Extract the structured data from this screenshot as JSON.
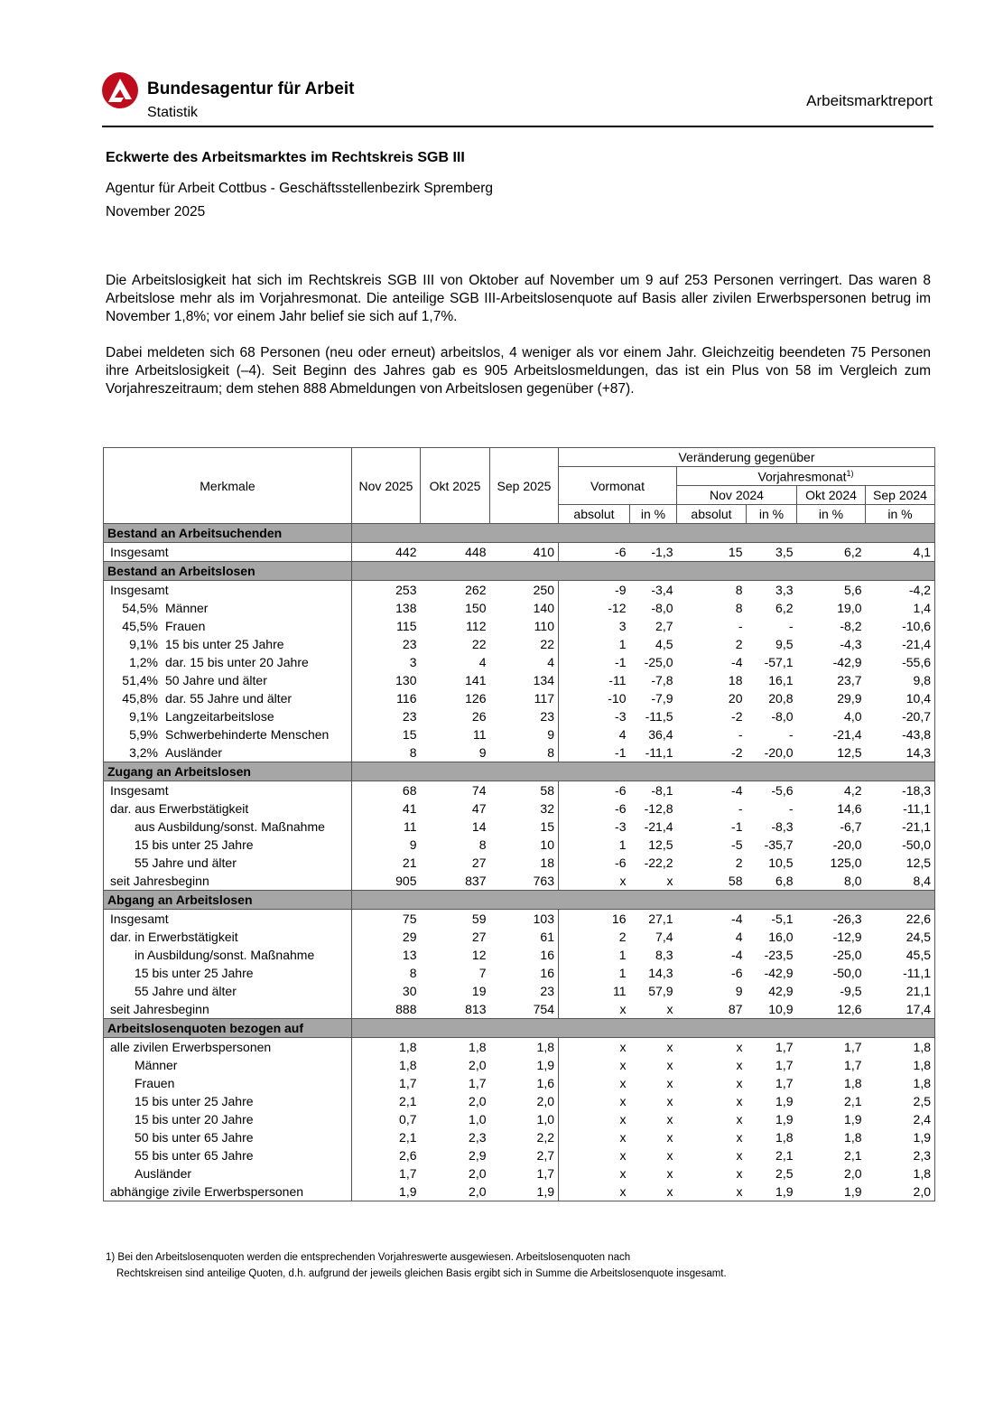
{
  "header": {
    "org": "Bundesagentur für Arbeit",
    "sub": "Statistik",
    "report": "Arbeitsmarktreport",
    "logo_color": "#c00d1e"
  },
  "title": "Eckwerte des Arbeitsmarktes im Rechtskreis SGB III",
  "agency": "Agentur für Arbeit Cottbus - Geschäftsstellenbezirk Spremberg",
  "month": "November 2025",
  "paragraphs": [
    "Die Arbeitslosigkeit hat sich im Rechtskreis SGB III von Oktober auf November um 9 auf 253 Personen verringert. Das waren 8 Arbeitslose mehr als im Vorjahresmonat. Die anteilige SGB III-Arbeitslosenquote auf Basis aller zivilen Erwerbspersonen betrug im November 1,8%; vor einem Jahr belief sie sich auf 1,7%.",
    "Dabei meldeten sich 68 Personen (neu oder erneut) arbeitslos, 4 weniger als vor einem Jahr. Gleichzeitig beendeten 75 Personen ihre Arbeitslosigkeit (–4). Seit Beginn des Jahres gab es 905 Arbeitslosmeldungen, das ist ein Plus von 58 im Vergleich zum Vorjahreszeitraum; dem stehen 888 Abmeldungen von Arbeitslosen gegenüber (+87)."
  ],
  "table": {
    "head": {
      "merkmale": "Merkmale",
      "nov25": "Nov 2025",
      "okt25": "Okt 2025",
      "sep25": "Sep 2025",
      "change": "Veränderung gegenüber",
      "vormonat": "Vormonat",
      "vorjahr": "Vorjahresmonat",
      "vorjahr_note": "1)",
      "nov24": "Nov 2024",
      "okt24": "Okt 2024",
      "sep24": "Sep 2024",
      "absolut": "absolut",
      "inpct": "in %"
    },
    "rows": [
      {
        "section": "Bestand an Arbeitsuchenden"
      },
      {
        "label": "Insgesamt",
        "indent": 0,
        "v": [
          "442",
          "448",
          "410",
          "-6",
          "-1,3",
          "15",
          "3,5",
          "6,2",
          "4,1"
        ]
      },
      {
        "section": "Bestand an Arbeitslosen"
      },
      {
        "label": "Insgesamt",
        "indent": 0,
        "v": [
          "253",
          "262",
          "250",
          "-9",
          "-3,4",
          "8",
          "3,3",
          "5,6",
          "-4,2"
        ]
      },
      {
        "share": "54,5%",
        "label": "Männer",
        "v": [
          "138",
          "150",
          "140",
          "-12",
          "-8,0",
          "8",
          "6,2",
          "19,0",
          "1,4"
        ]
      },
      {
        "share": "45,5%",
        "label": "Frauen",
        "v": [
          "115",
          "112",
          "110",
          "3",
          "2,7",
          "-",
          "-",
          "-8,2",
          "-10,6"
        ]
      },
      {
        "share": "9,1%",
        "label": "15 bis unter 25 Jahre",
        "v": [
          "23",
          "22",
          "22",
          "1",
          "4,5",
          "2",
          "9,5",
          "-4,3",
          "-21,4"
        ]
      },
      {
        "share": "1,2%",
        "label": "dar. 15 bis unter 20 Jahre",
        "v": [
          "3",
          "4",
          "4",
          "-1",
          "-25,0",
          "-4",
          "-57,1",
          "-42,9",
          "-55,6"
        ]
      },
      {
        "share": "51,4%",
        "label": "50 Jahre und älter",
        "v": [
          "130",
          "141",
          "134",
          "-11",
          "-7,8",
          "18",
          "16,1",
          "23,7",
          "9,8"
        ]
      },
      {
        "share": "45,8%",
        "label": "dar. 55 Jahre und älter",
        "v": [
          "116",
          "126",
          "117",
          "-10",
          "-7,9",
          "20",
          "20,8",
          "29,9",
          "10,4"
        ]
      },
      {
        "share": "9,1%",
        "label": "Langzeitarbeitslose",
        "v": [
          "23",
          "26",
          "23",
          "-3",
          "-11,5",
          "-2",
          "-8,0",
          "4,0",
          "-20,7"
        ]
      },
      {
        "share": "5,9%",
        "label": "Schwerbehinderte Menschen",
        "v": [
          "15",
          "11",
          "9",
          "4",
          "36,4",
          "-",
          "-",
          "-21,4",
          "-43,8"
        ]
      },
      {
        "share": "3,2%",
        "label": "Ausländer",
        "v": [
          "8",
          "9",
          "8",
          "-1",
          "-11,1",
          "-2",
          "-20,0",
          "12,5",
          "14,3"
        ]
      },
      {
        "section": "Zugang an Arbeitslosen"
      },
      {
        "label": "Insgesamt",
        "indent": 0,
        "v": [
          "68",
          "74",
          "58",
          "-6",
          "-8,1",
          "-4",
          "-5,6",
          "4,2",
          "-18,3"
        ]
      },
      {
        "label": "dar. aus Erwerbstätigkeit",
        "indent": 0,
        "v": [
          "41",
          "47",
          "32",
          "-6",
          "-12,8",
          "-",
          "-",
          "14,6",
          "-11,1"
        ]
      },
      {
        "label": "aus Ausbildung/sonst. Maßnahme",
        "indent": 1,
        "v": [
          "11",
          "14",
          "15",
          "-3",
          "-21,4",
          "-1",
          "-8,3",
          "-6,7",
          "-21,1"
        ]
      },
      {
        "label": "15 bis unter 25 Jahre",
        "indent": 1,
        "v": [
          "9",
          "8",
          "10",
          "1",
          "12,5",
          "-5",
          "-35,7",
          "-20,0",
          "-50,0"
        ]
      },
      {
        "label": "55 Jahre und älter",
        "indent": 1,
        "v": [
          "21",
          "27",
          "18",
          "-6",
          "-22,2",
          "2",
          "10,5",
          "125,0",
          "12,5"
        ]
      },
      {
        "label": "seit Jahresbeginn",
        "indent": 0,
        "v": [
          "905",
          "837",
          "763",
          "x",
          "x",
          "58",
          "6,8",
          "8,0",
          "8,4"
        ]
      },
      {
        "section": "Abgang an Arbeitslosen"
      },
      {
        "label": "Insgesamt",
        "indent": 0,
        "v": [
          "75",
          "59",
          "103",
          "16",
          "27,1",
          "-4",
          "-5,1",
          "-26,3",
          "22,6"
        ]
      },
      {
        "label": "dar. in Erwerbstätigkeit",
        "indent": 0,
        "v": [
          "29",
          "27",
          "61",
          "2",
          "7,4",
          "4",
          "16,0",
          "-12,9",
          "24,5"
        ]
      },
      {
        "label": "in Ausbildung/sonst. Maßnahme",
        "indent": 1,
        "v": [
          "13",
          "12",
          "16",
          "1",
          "8,3",
          "-4",
          "-23,5",
          "-25,0",
          "45,5"
        ]
      },
      {
        "label": "15 bis unter 25 Jahre",
        "indent": 1,
        "v": [
          "8",
          "7",
          "16",
          "1",
          "14,3",
          "-6",
          "-42,9",
          "-50,0",
          "-11,1"
        ]
      },
      {
        "label": "55 Jahre und älter",
        "indent": 1,
        "v": [
          "30",
          "19",
          "23",
          "11",
          "57,9",
          "9",
          "42,9",
          "-9,5",
          "21,1"
        ]
      },
      {
        "label": "seit Jahresbeginn",
        "indent": 0,
        "v": [
          "888",
          "813",
          "754",
          "x",
          "x",
          "87",
          "10,9",
          "12,6",
          "17,4"
        ]
      },
      {
        "section": "Arbeitslosenquoten bezogen auf"
      },
      {
        "label": "alle zivilen Erwerbspersonen",
        "indent": 0,
        "v": [
          "1,8",
          "1,8",
          "1,8",
          "x",
          "x",
          "x",
          "1,7",
          "1,7",
          "1,8"
        ]
      },
      {
        "label": "Männer",
        "indent": 1,
        "v": [
          "1,8",
          "2,0",
          "1,9",
          "x",
          "x",
          "x",
          "1,7",
          "1,7",
          "1,8"
        ]
      },
      {
        "label": "Frauen",
        "indent": 1,
        "v": [
          "1,7",
          "1,7",
          "1,6",
          "x",
          "x",
          "x",
          "1,7",
          "1,8",
          "1,8"
        ]
      },
      {
        "label": "15 bis unter 25 Jahre",
        "indent": 1,
        "v": [
          "2,1",
          "2,0",
          "2,0",
          "x",
          "x",
          "x",
          "1,9",
          "2,1",
          "2,5"
        ]
      },
      {
        "label": "15 bis unter 20 Jahre",
        "indent": 1,
        "v": [
          "0,7",
          "1,0",
          "1,0",
          "x",
          "x",
          "x",
          "1,9",
          "1,9",
          "2,4"
        ]
      },
      {
        "label": "50 bis unter 65 Jahre",
        "indent": 1,
        "v": [
          "2,1",
          "2,3",
          "2,2",
          "x",
          "x",
          "x",
          "1,8",
          "1,8",
          "1,9"
        ]
      },
      {
        "label": "55 bis unter 65 Jahre",
        "indent": 1,
        "v": [
          "2,6",
          "2,9",
          "2,7",
          "x",
          "x",
          "x",
          "2,1",
          "2,1",
          "2,3"
        ]
      },
      {
        "label": "Ausländer",
        "indent": 1,
        "v": [
          "1,7",
          "2,0",
          "1,7",
          "x",
          "x",
          "x",
          "2,5",
          "2,0",
          "1,8"
        ]
      },
      {
        "label": "abhängige zivile Erwerbspersonen",
        "indent": 0,
        "v": [
          "1,9",
          "2,0",
          "1,9",
          "x",
          "x",
          "x",
          "1,9",
          "1,9",
          "2,0"
        ]
      }
    ]
  },
  "footnote": [
    "1) Bei den Arbeitslosenquoten werden die entsprechenden Vorjahreswerte ausgewiesen. Arbeitslosenquoten nach",
    "Rechtskreisen sind anteilige Quoten, d.h. aufgrund der jeweils gleichen Basis ergibt sich in Summe die Arbeitslosenquote insgesamt."
  ]
}
